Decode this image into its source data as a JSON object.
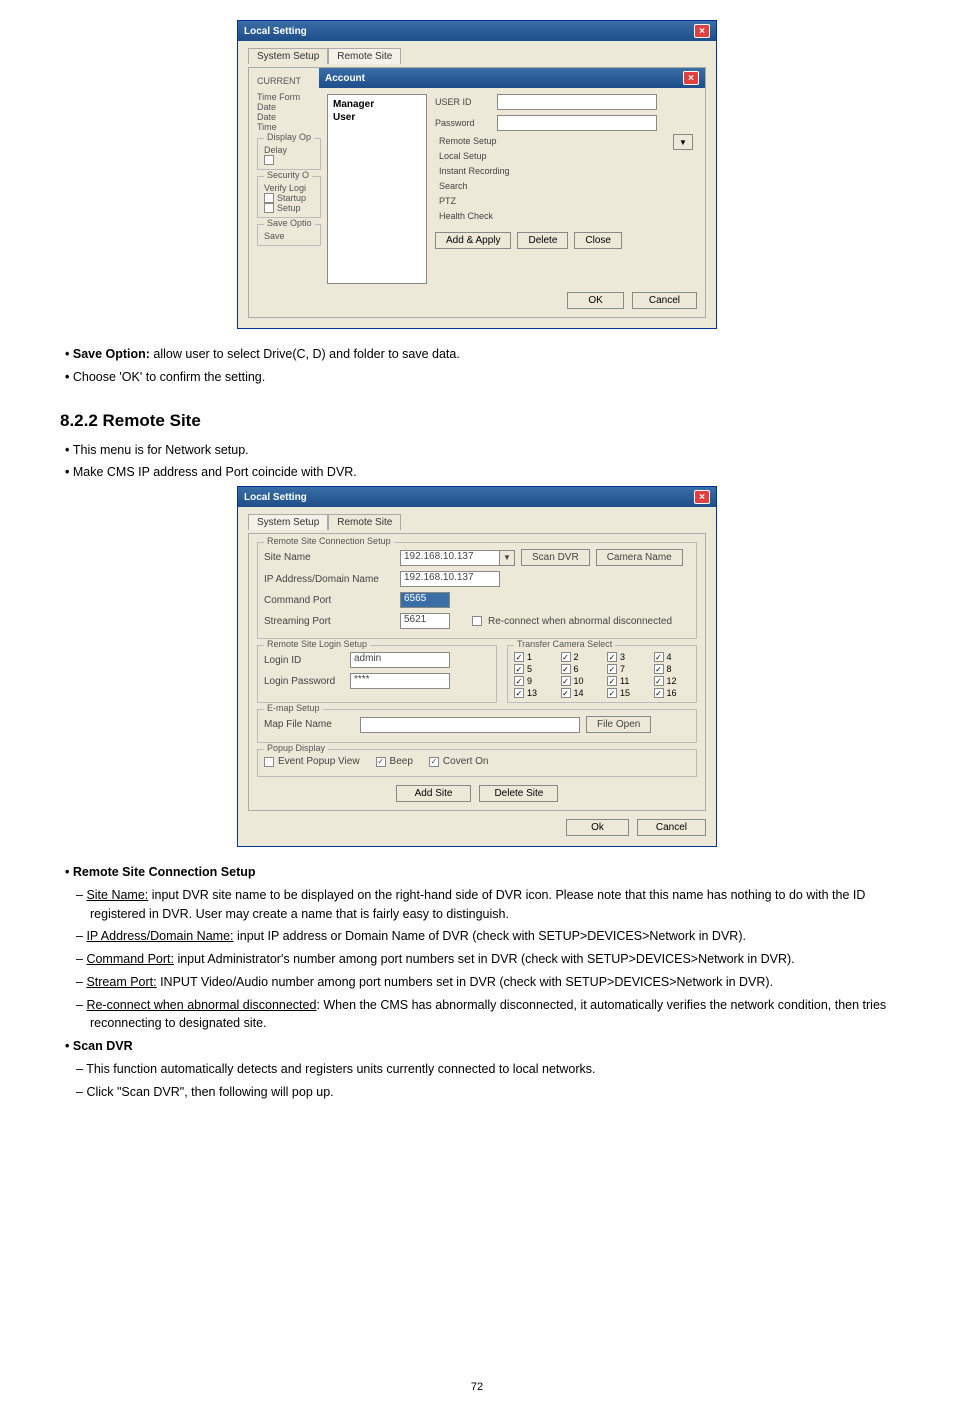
{
  "dialog1": {
    "title": "Local Setting",
    "tabs": {
      "t1": "System Setup",
      "t2": "Remote Site"
    },
    "overlay_title": "Account",
    "current_label": "CURRENT",
    "left_labels": {
      "l1": "Time Form",
      "l2": "Date",
      "l3": "Date",
      "l4": "Time",
      "g1": "Display Op",
      "g1a": "Delay",
      "g2": "Security O",
      "g2a": "Verify Logi",
      "g2b": "Startup",
      "g2c": "Setup",
      "g3": "Save Optio",
      "g3a": "Save"
    },
    "account_items": {
      "i1": "Manager",
      "i2": "User"
    },
    "right": {
      "userid": "USER ID",
      "password": "Password",
      "c1": "Remote Setup",
      "c2": "Local Setup",
      "c3": "Instant Recording",
      "c4": "Search",
      "c5": "PTZ",
      "c6": "Health Check"
    },
    "buttons": {
      "b1": "Add & Apply",
      "b2": "Delete",
      "b3": "Close",
      "ok": "OK",
      "cancel": "Cancel"
    }
  },
  "text1": {
    "save_option": "Save Option:",
    "save_option_rest": " allow user to select Drive(C, D) and folder to save data.",
    "choose_ok": "Choose 'OK' to confirm the setting."
  },
  "heading": "8.2.2    Remote Site",
  "text2": {
    "l1": "This menu is for Network setup.",
    "l2": "Make CMS IP address and Port coincide with DVR."
  },
  "dialog2": {
    "title": "Local Setting",
    "tabs": {
      "t1": "System Setup",
      "t2": "Remote Site"
    },
    "group1": "Remote Site Connection Setup",
    "site_name": "Site Name",
    "site_name_val": "192.168.10.137",
    "scan_dvr": "Scan DVR",
    "camera_name": "Camera Name",
    "ip_label": "IP Address/Domain Name",
    "ip_val": "192.168.10.137",
    "cmd_port": "Command Port",
    "cmd_port_val": "6565",
    "stream_port": "Streaming Port",
    "stream_port_val": "5621",
    "reconnect": "Re-connect when abnormal disconnected",
    "group2": "Remote Site Login Setup",
    "login_id": "Login ID",
    "login_id_val": "admin",
    "login_pw": "Login Password",
    "login_pw_val": "****",
    "group3": "Transfer Camera Select",
    "cams": [
      "1",
      "2",
      "3",
      "4",
      "5",
      "6",
      "7",
      "8",
      "9",
      "10",
      "11",
      "12",
      "13",
      "14",
      "15",
      "16"
    ],
    "group4": "E-map Setup",
    "mapfile": "Map File Name",
    "fileopen": "File Open",
    "group5": "Popup Display",
    "eventpopup": "Event Popup View",
    "beep": "Beep",
    "coverton": "Covert On",
    "addsite": "Add Site",
    "deletesite": "Delete Site",
    "ok": "Ok",
    "cancel": "Cancel"
  },
  "text3": {
    "h1": "Remote Site Connection Setup",
    "site_name_u": "Site Name:",
    "site_name_r": " input DVR site name to be displayed on the right-hand side of DVR icon. Please note that this name has nothing to do with the ID registered in DVR. User may create a name that is fairly easy to distinguish.",
    "ip_u": "IP Address/Domain Name:",
    "ip_r": " input IP address or Domain Name of DVR (check with SETUP>DEVICES>Network in DVR).",
    "cmd_u": "Command Port:",
    "cmd_r": " input Administrator's number among port numbers set in DVR (check with SETUP>DEVICES>Network in DVR).",
    "stream_u": "Stream Port:",
    "stream_r": " INPUT Video/Audio number among port numbers set in DVR (check with SETUP>DEVICES>Network in DVR).",
    "recon_u": "Re-connect when abnormal disconnected",
    "recon_r": ": When the CMS has abnormally disconnected, it automatically verifies the network condition, then tries reconnecting to designated site.",
    "h2": "Scan DVR",
    "scan1": "This function automatically detects and registers units currently connected to local networks.",
    "scan2": "Click \"Scan DVR\", then following will pop up."
  },
  "pagenum": "72",
  "colors": {
    "titlebar_start": "#3a6ea5",
    "titlebar_end": "#1e4e8a",
    "dialog_bg": "#ece9d8",
    "close_red": "#e04040",
    "border": "#888"
  }
}
